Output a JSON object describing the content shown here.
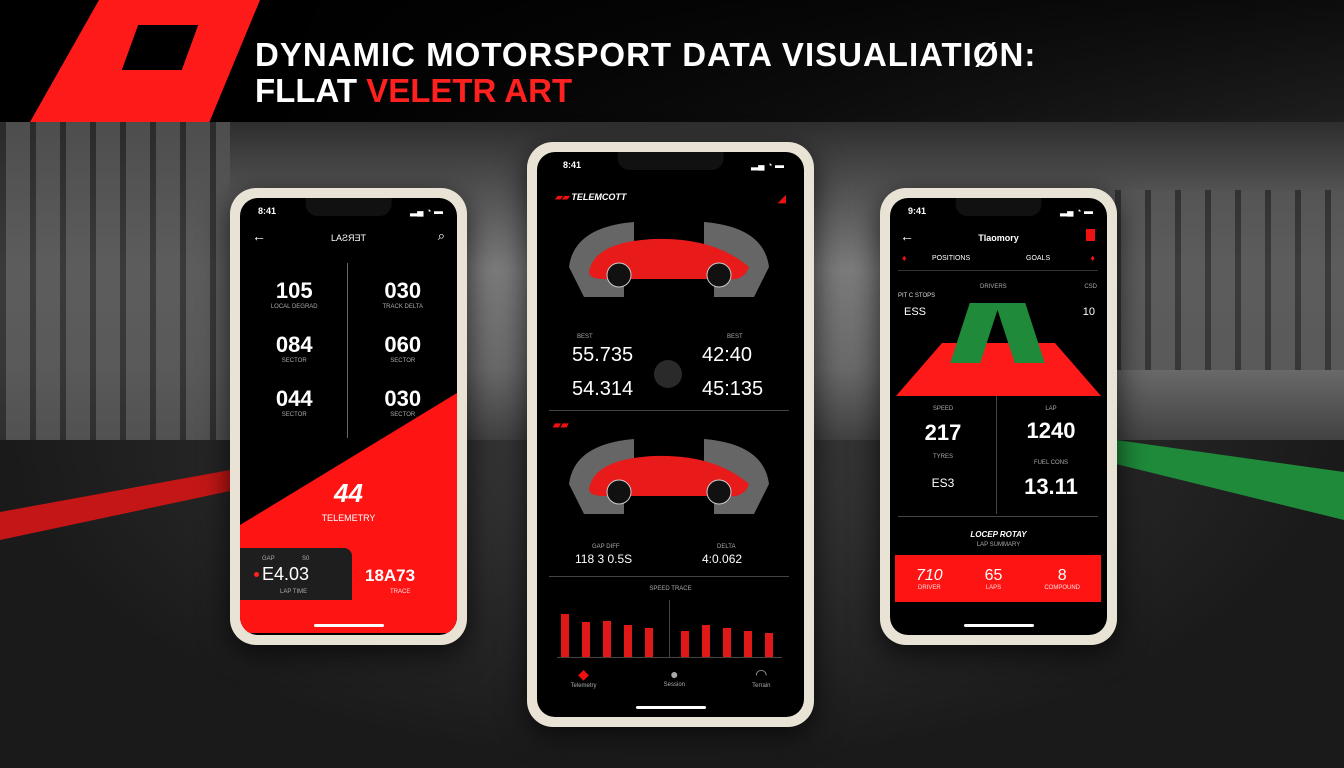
{
  "header": {
    "title_line1": "DYNAMIC MOTORSPORT   DATA VISUALIATIØN:",
    "title_line2_white": "FLLAT ",
    "title_line2_red": "VELETR ART"
  },
  "colors": {
    "accent": "#ff1a1a",
    "background": "#000000",
    "track_green": "#1e8a3a"
  },
  "left_phone": {
    "time": "8:41",
    "header": "LAƧЯƎT",
    "back_icon": "arrow-left",
    "search_icon": "search",
    "stats": [
      {
        "value": "105",
        "label": "LOCAL DEGRAD"
      },
      {
        "value": "030",
        "label": "TRACK DELTA"
      },
      {
        "value": "084",
        "label": "SECTOR"
      },
      {
        "value": "060",
        "label": "SECTOR"
      },
      {
        "value": "044",
        "label": "SECTOR"
      },
      {
        "value": "030",
        "label": "SECTOR"
      }
    ],
    "hero_value": "44",
    "hero_label": "TELEMETRY",
    "bottom_left": {
      "top_a": "GAP",
      "top_b": "S0",
      "value": "E4.03",
      "label": "LAP TIME"
    },
    "bottom_right": {
      "value": "18A73",
      "label": "TRACE"
    }
  },
  "center_phone": {
    "time": "8:41",
    "brand": "TELEMCOTT",
    "times": [
      {
        "label": "BEST",
        "value": "55.735"
      },
      {
        "label": "BEST",
        "value": "42:40"
      },
      {
        "value": "54.314"
      },
      {
        "value": "45:135"
      }
    ],
    "lower_values": [
      {
        "label": "GAP DIFF",
        "value": "118 3 0.5S"
      },
      {
        "label": "DELTA",
        "value": "4:0.062"
      }
    ],
    "chart_label": "SPEED TRACE",
    "bars_left": [
      0.75,
      0.6,
      0.62,
      0.55,
      0.5
    ],
    "bars_right": [
      0.45,
      0.55,
      0.5,
      0.45,
      0.42
    ],
    "nav": [
      "Telemetry",
      "Session",
      "Terrain"
    ]
  },
  "right_phone": {
    "time": "9:41",
    "header": "Tlaomory",
    "tab_left": "POSITIONS",
    "tab_right": "GOALS",
    "track_left_label": "PIT C STOPS",
    "track_left_value": "ESS",
    "track_center_label": "DRIVERS",
    "track_right_label": "CSD",
    "track_right_value": "10",
    "stats": [
      {
        "label": "SPEED",
        "value": "217"
      },
      {
        "label": "LAP",
        "value": "1240"
      },
      {
        "label": "TYRES",
        "value": "ES3"
      },
      {
        "label": "FUEL CONS",
        "value": "13.11"
      }
    ],
    "section_title": "LOCEP ROTAY",
    "section_sub": "LAP SUMMARY",
    "footer": [
      {
        "value": "710",
        "label": "DRIVER"
      },
      {
        "value": "65",
        "label": "LAPS"
      },
      {
        "value": "8",
        "label": "COMPOUND"
      }
    ]
  }
}
